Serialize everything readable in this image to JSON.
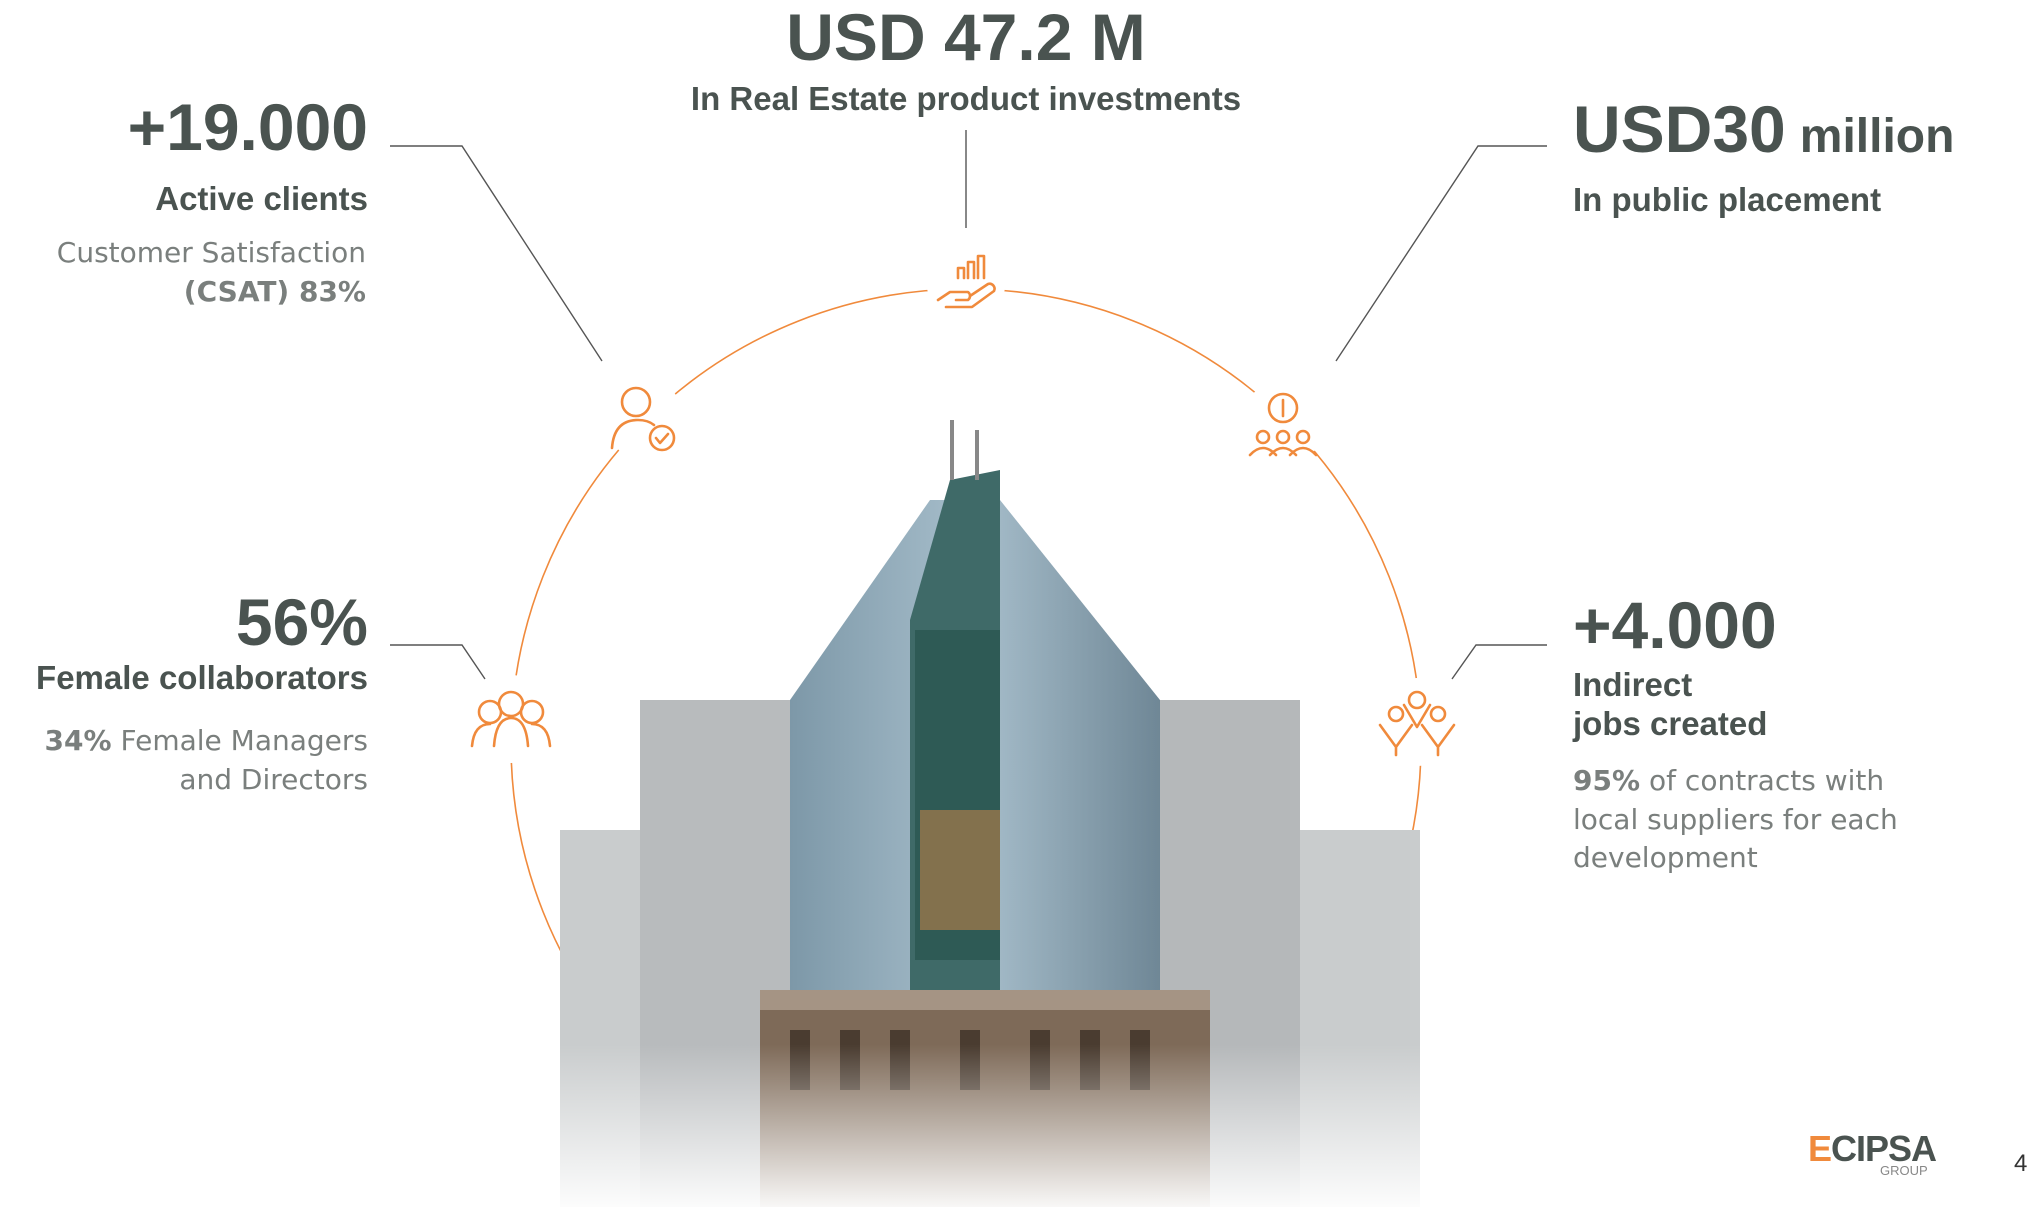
{
  "stats": [
    {
      "value": "USD 47.2 M",
      "label": "In Real Estate product investments"
    },
    {
      "value": "+19.000",
      "label": "Active clients",
      "note": [
        {
          "text": "Customer Satisfaction"
        },
        {
          "bold": "(CSAT) 83%"
        }
      ]
    },
    {
      "value": "USD30",
      "unit": "million",
      "label": "In public placement"
    },
    {
      "value": "56%",
      "label": "Female collaborators",
      "note": [
        {
          "bold": "34%",
          "text": "Female Managers"
        },
        {
          "text": "and Directors"
        }
      ]
    },
    {
      "value": "+4.000",
      "label": [
        "Indirect",
        "jobs created"
      ],
      "note": [
        {
          "bold": "95%",
          "text": "of contracts with"
        },
        {
          "text": "local suppliers for each"
        },
        {
          "text": "development"
        }
      ]
    }
  ],
  "logo": {
    "name": "ECIPSA",
    "sub": "GROUP"
  },
  "page_number": "4"
}
